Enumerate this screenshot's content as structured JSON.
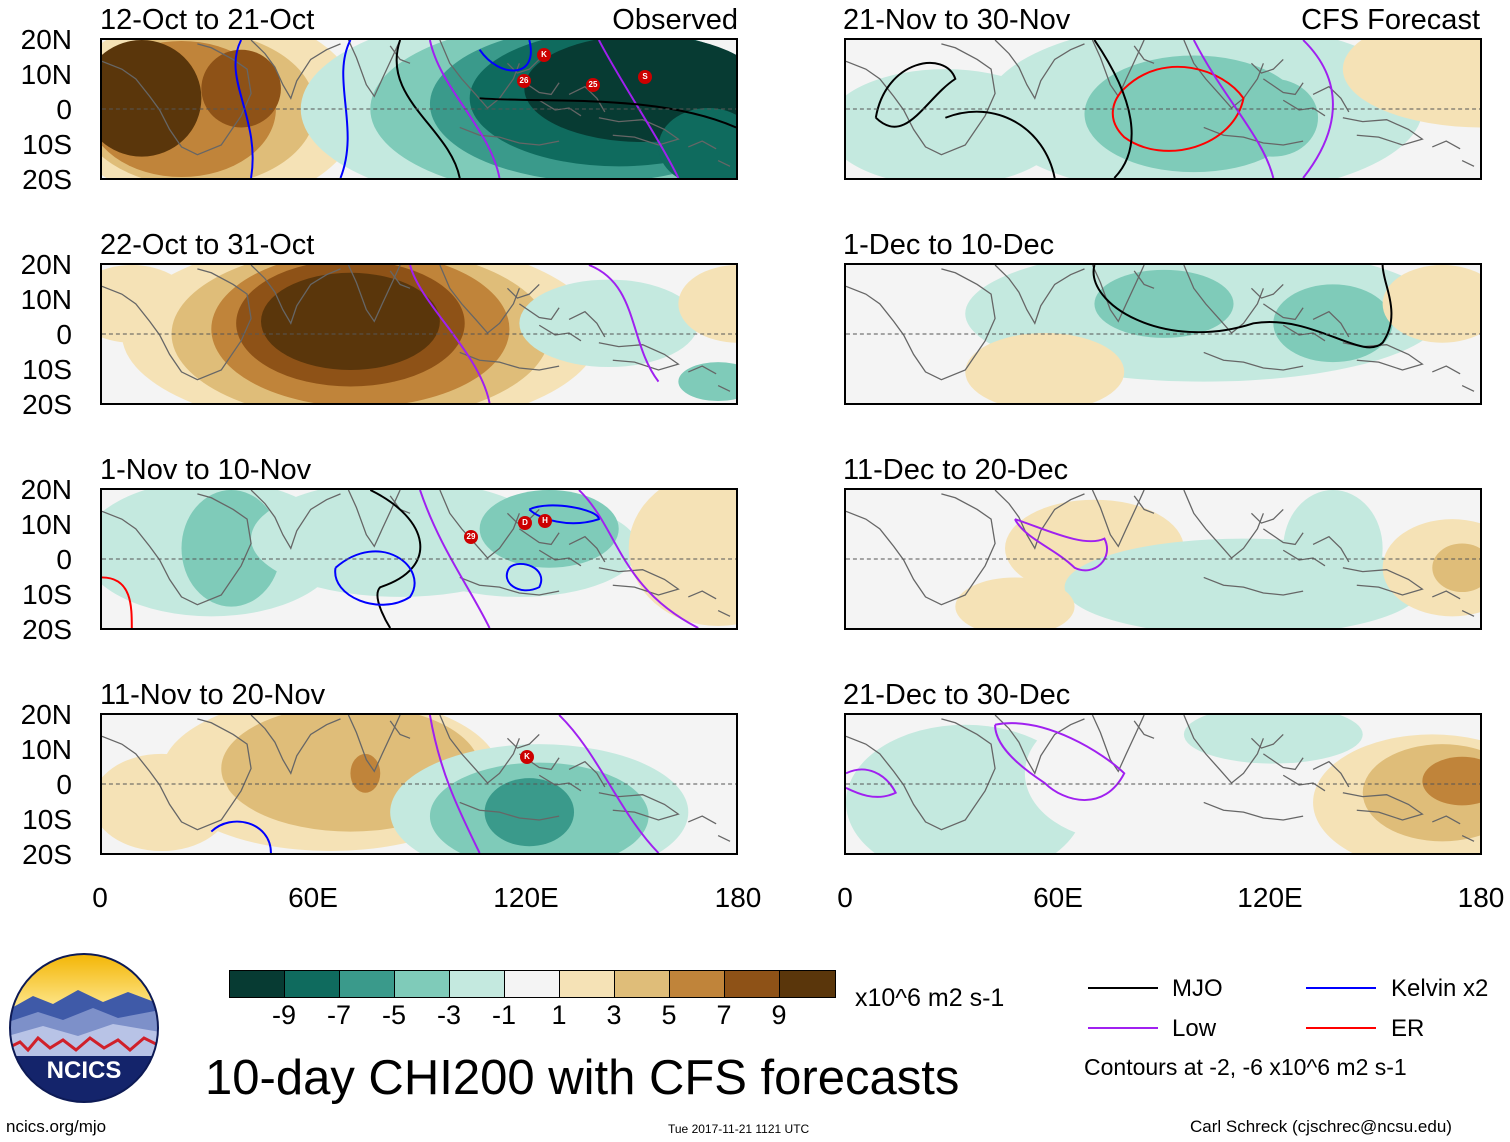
{
  "colors": {
    "dk_green": "#073b33",
    "green2": "#0f6b5e",
    "green3": "#3a9a8b",
    "green4": "#7fcbb9",
    "green5": "#c4e9df",
    "white": "#f4f4f4",
    "tan1": "#f5e2b6",
    "tan2": "#dfbd79",
    "tan3": "#c0843a",
    "tan4": "#8e5217",
    "tan5": "#5a360b",
    "mjo": "#000000",
    "kelvin": "#0000ff",
    "low": "#a020f0",
    "er": "#ff0000"
  },
  "axes": {
    "lat_labels": [
      "20N",
      "10N",
      "0",
      "10S",
      "20S"
    ],
    "lon_labels": [
      "0",
      "60E",
      "120E",
      "180"
    ]
  },
  "panels": {
    "left": [
      {
        "title": "12-Oct to 21-Oct",
        "tag": "Observed",
        "cyclones": [
          "K",
          "26",
          "25",
          "S"
        ]
      },
      {
        "title": "22-Oct to 31-Oct",
        "tag": "",
        "cyclones": []
      },
      {
        "title": "1-Nov to 10-Nov",
        "tag": "",
        "cyclones": [
          "29",
          "D",
          "H"
        ]
      },
      {
        "title": "11-Nov to 20-Nov",
        "tag": "",
        "cyclones": [
          "K"
        ]
      }
    ],
    "right": [
      {
        "title": "21-Nov to 30-Nov",
        "tag": "CFS Forecast"
      },
      {
        "title": "1-Dec to 10-Dec",
        "tag": ""
      },
      {
        "title": "11-Dec to 20-Dec",
        "tag": ""
      },
      {
        "title": "21-Dec to 30-Dec",
        "tag": ""
      }
    ]
  },
  "colorbar": {
    "labels": [
      "-9",
      "-7",
      "-5",
      "-3",
      "-1",
      "1",
      "3",
      "5",
      "7",
      "9"
    ],
    "units": "x10^6 m2 s-1"
  },
  "title": "10-day CHI200 with CFS forecasts",
  "legend": {
    "mjo": "MJO",
    "kelvin": "Kelvin x2",
    "low": "Low",
    "er": "ER",
    "contours": "Contours at -2, -6 x10^6 m2 s-1"
  },
  "logo": {
    "text": "NCICS"
  },
  "footer": {
    "url": "ncics.org/mjo",
    "timestamp": "Tue 2017-11-21 1121 UTC",
    "credit": "Carl Schreck (cjschrec@ncsu.edu)"
  }
}
